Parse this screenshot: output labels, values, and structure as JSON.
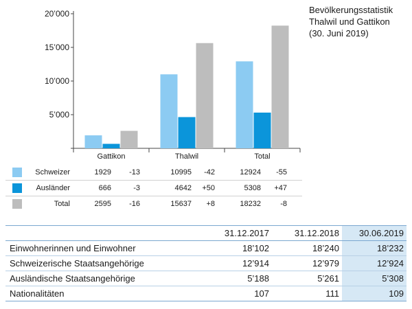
{
  "title": {
    "line1": "Bevölkerungsstatistik",
    "line2": "Thalwil und Gattikon",
    "line3": "(30. Juni 2019)"
  },
  "colors": {
    "schweizer": "#8ccbf2",
    "auslaender": "#0b95da",
    "total": "#bdbdbd",
    "highlight_col": "#d6e8f5",
    "table_rule": "#7aa7cf"
  },
  "chart_data": {
    "type": "bar",
    "categories": [
      "Gattikon",
      "Thalwil",
      "Total"
    ],
    "series": [
      {
        "name": "Schweizer",
        "values": [
          1929,
          10995,
          12924
        ]
      },
      {
        "name": "Ausländer",
        "values": [
          666,
          4642,
          5308
        ]
      },
      {
        "name": "Total",
        "values": [
          2595,
          15637,
          18232
        ]
      }
    ],
    "ylim": [
      0,
      20000
    ],
    "yticks": [
      5000,
      10000,
      15000,
      20000
    ],
    "ytick_labels": [
      "5’000",
      "10’000",
      "15’000",
      "20’000"
    ],
    "xlabel": "",
    "ylabel": "",
    "grid": false
  },
  "data_table": {
    "rows": [
      {
        "label": "Schweizer",
        "cells": [
          "1929",
          "-13",
          "10995",
          "-42",
          "12924",
          "-55"
        ]
      },
      {
        "label": "Ausländer",
        "cells": [
          "666",
          "-3",
          "4642",
          "+50",
          "5308",
          "+47"
        ]
      },
      {
        "label": "Total",
        "cells": [
          "2595",
          "-16",
          "15637",
          "+8",
          "18232",
          "-8"
        ]
      }
    ]
  },
  "summary_table": {
    "headers": [
      "",
      "31.12.2017",
      "31.12.2018",
      "30.06.2019"
    ],
    "rows": [
      {
        "label": "Einwohnerinnen und Einwohner",
        "values": [
          "18’102",
          "18’240",
          "18’232"
        ]
      },
      {
        "label": "Schweizerische Staatsangehörige",
        "values": [
          "12’914",
          "12’979",
          "12’924"
        ]
      },
      {
        "label": "Ausländische Staatsangehörige",
        "values": [
          "5’188",
          "5’261",
          "5’308"
        ]
      },
      {
        "label": "Nationalitäten",
        "values": [
          "107",
          "111",
          "109"
        ]
      }
    ]
  }
}
